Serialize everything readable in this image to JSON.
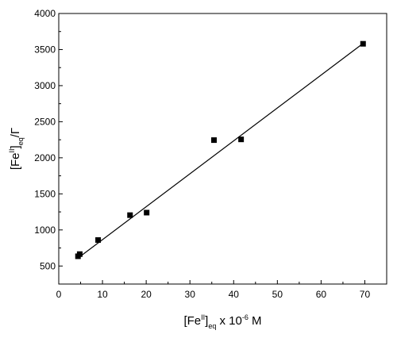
{
  "chart_data": {
    "type": "scatter",
    "x_axis": {
      "range": [
        0,
        75
      ],
      "ticks": [
        0,
        10,
        20,
        30,
        40,
        50,
        60,
        70
      ],
      "tick_labels": [
        "0",
        "10",
        "20",
        "30",
        "40",
        "50",
        "60",
        "70"
      ],
      "label_parts": {
        "main": "[Fe",
        "sup": "II",
        "close": "]",
        "sub": "eq",
        "rest": " x 10",
        "exp": "-6",
        "unit": " M"
      }
    },
    "y_axis": {
      "range": [
        250,
        4000
      ],
      "ticks": [
        500,
        1000,
        1500,
        2000,
        2500,
        3000,
        3500,
        4000
      ],
      "tick_labels": [
        "500",
        "1000",
        "1500",
        "2000",
        "2500",
        "3000",
        "3500",
        "4000"
      ],
      "label_parts": {
        "main": "[Fe",
        "sup": "II",
        "close": "]",
        "sub": "eq",
        "rest": "/Γ"
      }
    },
    "series": [
      {
        "marker": "square",
        "color": "#000000",
        "points": [
          {
            "x": 4.4,
            "y": 635
          },
          {
            "x": 4.8,
            "y": 665
          },
          {
            "x": 9.0,
            "y": 860
          },
          {
            "x": 16.3,
            "y": 1205
          },
          {
            "x": 20.1,
            "y": 1240
          },
          {
            "x": 35.5,
            "y": 2245
          },
          {
            "x": 41.7,
            "y": 2255
          },
          {
            "x": 69.6,
            "y": 3580
          }
        ]
      }
    ],
    "fit_line": {
      "x": [
        4.4,
        69.6
      ],
      "y": [
        610,
        3585
      ],
      "color": "#000000"
    },
    "grid": false,
    "legend": "none"
  }
}
